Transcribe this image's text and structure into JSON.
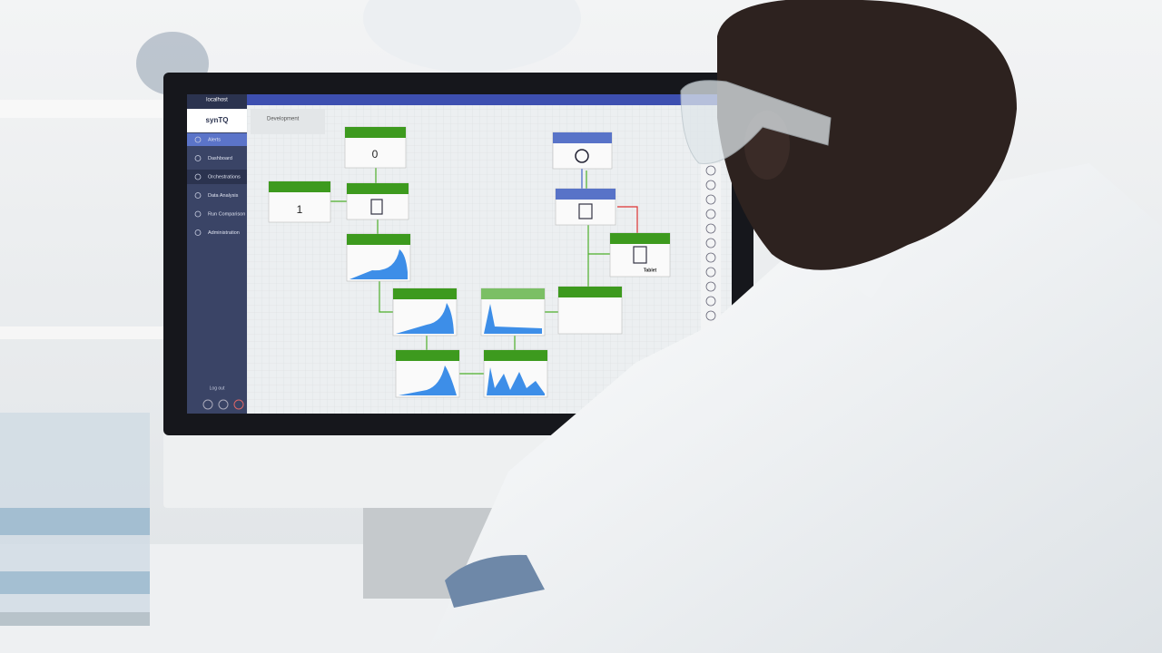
{
  "sidebar": {
    "host": "localhost",
    "logo": "synTQ",
    "menu": [
      "Alerts",
      "Dashboard",
      "Orchestrations",
      "Data Analysis",
      "Run Comparison",
      "Administration"
    ],
    "logout": "Log out"
  },
  "canvas": {
    "header": "Development",
    "nodes": [
      "0",
      "1",
      "Tablet"
    ]
  }
}
